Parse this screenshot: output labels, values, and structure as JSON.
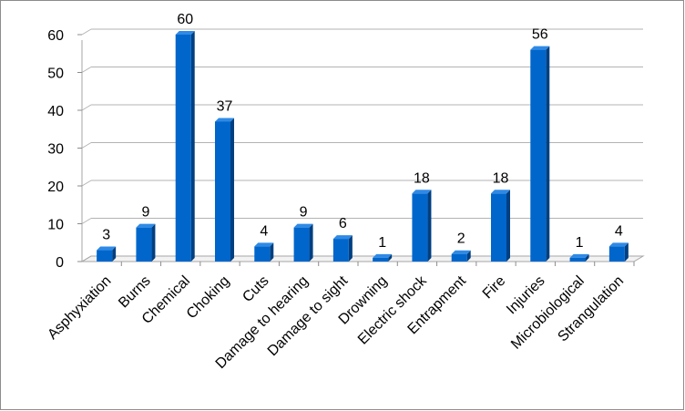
{
  "chart_data": {
    "type": "bar",
    "title": "",
    "xlabel": "",
    "ylabel": "",
    "ylim": [
      0,
      60
    ],
    "yticks": [
      "0",
      "10",
      "20",
      "30",
      "40",
      "50",
      "60"
    ],
    "grid": "horizontal",
    "legend": "none",
    "bar_color": "#0066cc",
    "categories": [
      "Asphyxiation",
      "Burns",
      "Chemical",
      "Choking",
      "Cuts",
      "Damage to hearing",
      "Damage to sight",
      "Drowning",
      "Electric shock",
      "Entrapment",
      "Fire",
      "Injuries",
      "Microbiological",
      "Strangulation"
    ],
    "values": [
      3,
      9,
      60,
      37,
      4,
      9,
      6,
      1,
      18,
      2,
      18,
      56,
      1,
      4
    ],
    "data_labels": [
      "3",
      "9",
      "60",
      "37",
      "4",
      "9",
      "6",
      "1",
      "18",
      "2",
      "18",
      "56",
      "1",
      "4"
    ]
  }
}
